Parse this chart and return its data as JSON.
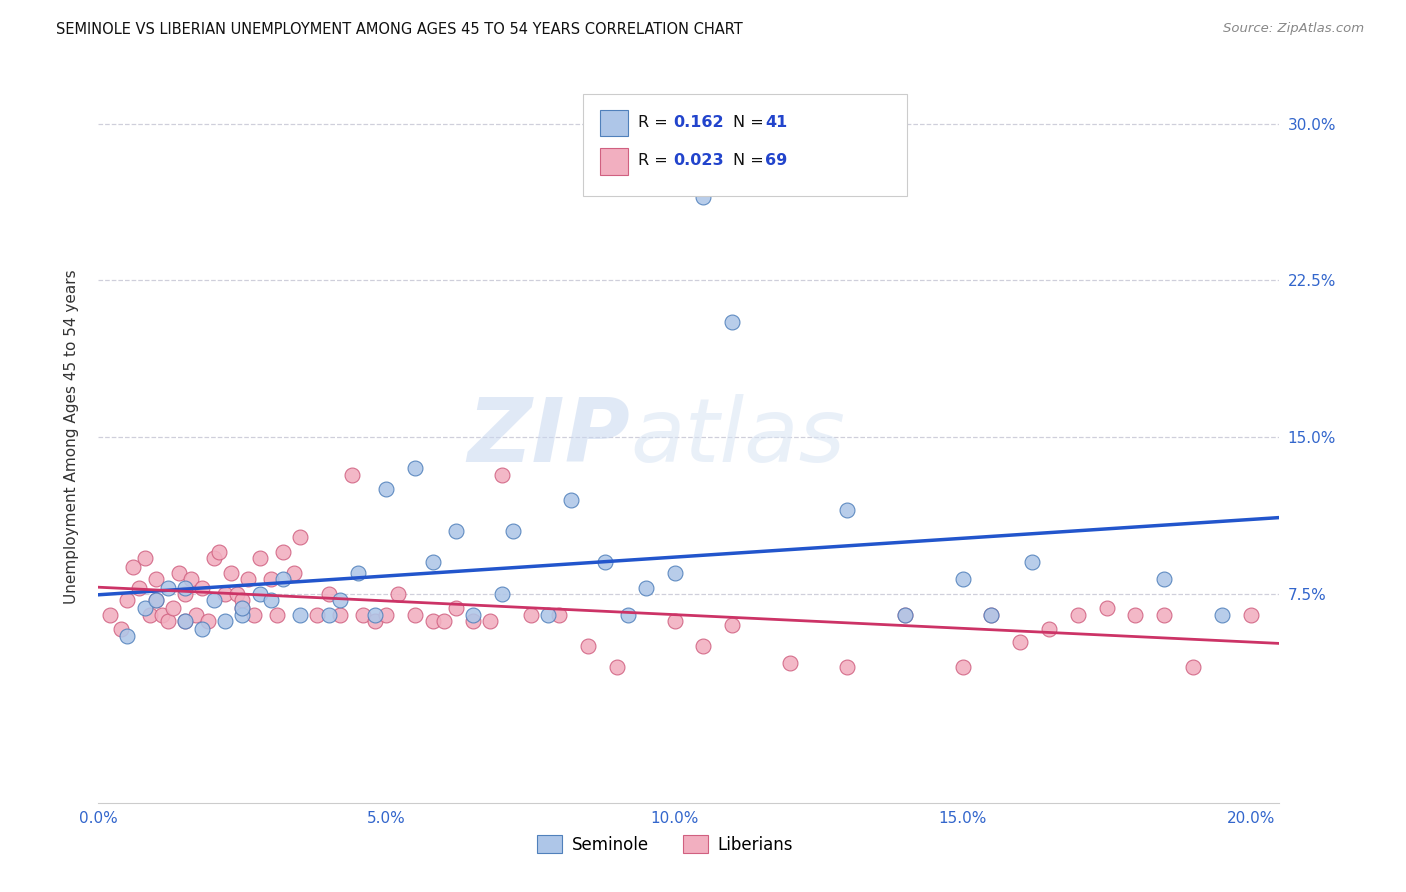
{
  "title": "SEMINOLE VS LIBERIAN UNEMPLOYMENT AMONG AGES 45 TO 54 YEARS CORRELATION CHART",
  "source": "Source: ZipAtlas.com",
  "ylabel": "Unemployment Among Ages 45 to 54 years",
  "xlim": [
    0.0,
    0.205
  ],
  "ylim": [
    -0.025,
    0.325
  ],
  "xticks": [
    0.0,
    0.05,
    0.1,
    0.15,
    0.2
  ],
  "yticks": [
    0.075,
    0.15,
    0.225,
    0.3
  ],
  "xtick_labels": [
    "0.0%",
    "5.0%",
    "10.0%",
    "15.0%",
    "20.0%"
  ],
  "ytick_labels": [
    "7.5%",
    "15.0%",
    "22.5%",
    "30.0%"
  ],
  "seminole_fill": "#aec6e8",
  "seminole_edge": "#5080bb",
  "liberian_fill": "#f2afc0",
  "liberian_edge": "#d06080",
  "trend_blue": "#2255cc",
  "trend_pink": "#cc3366",
  "watermark_zip": "ZIP",
  "watermark_atlas": "atlas",
  "r_seminole": "0.162",
  "n_seminole": "41",
  "r_liberian": "0.023",
  "n_liberian": "69",
  "seminole_x": [
    0.005,
    0.008,
    0.01,
    0.012,
    0.015,
    0.015,
    0.018,
    0.02,
    0.022,
    0.025,
    0.025,
    0.028,
    0.03,
    0.032,
    0.035,
    0.04,
    0.042,
    0.045,
    0.048,
    0.05,
    0.055,
    0.058,
    0.062,
    0.065,
    0.07,
    0.072,
    0.078,
    0.082,
    0.088,
    0.092,
    0.095,
    0.1,
    0.105,
    0.11,
    0.13,
    0.14,
    0.15,
    0.155,
    0.162,
    0.185,
    0.195
  ],
  "seminole_y": [
    0.055,
    0.068,
    0.072,
    0.078,
    0.062,
    0.078,
    0.058,
    0.072,
    0.062,
    0.065,
    0.068,
    0.075,
    0.072,
    0.082,
    0.065,
    0.065,
    0.072,
    0.085,
    0.065,
    0.125,
    0.135,
    0.09,
    0.105,
    0.065,
    0.075,
    0.105,
    0.065,
    0.12,
    0.09,
    0.065,
    0.078,
    0.085,
    0.265,
    0.205,
    0.115,
    0.065,
    0.082,
    0.065,
    0.09,
    0.082,
    0.065
  ],
  "liberian_x": [
    0.002,
    0.004,
    0.005,
    0.006,
    0.007,
    0.008,
    0.009,
    0.01,
    0.01,
    0.011,
    0.012,
    0.013,
    0.014,
    0.015,
    0.015,
    0.016,
    0.017,
    0.018,
    0.019,
    0.02,
    0.021,
    0.022,
    0.023,
    0.024,
    0.025,
    0.025,
    0.026,
    0.027,
    0.028,
    0.03,
    0.031,
    0.032,
    0.034,
    0.035,
    0.038,
    0.04,
    0.042,
    0.044,
    0.046,
    0.048,
    0.05,
    0.052,
    0.055,
    0.058,
    0.06,
    0.062,
    0.065,
    0.068,
    0.07,
    0.075,
    0.08,
    0.085,
    0.09,
    0.1,
    0.105,
    0.11,
    0.12,
    0.13,
    0.14,
    0.15,
    0.155,
    0.16,
    0.165,
    0.17,
    0.175,
    0.18,
    0.185,
    0.19,
    0.2
  ],
  "liberian_y": [
    0.065,
    0.058,
    0.072,
    0.088,
    0.078,
    0.092,
    0.065,
    0.072,
    0.082,
    0.065,
    0.062,
    0.068,
    0.085,
    0.075,
    0.062,
    0.082,
    0.065,
    0.078,
    0.062,
    0.092,
    0.095,
    0.075,
    0.085,
    0.075,
    0.068,
    0.072,
    0.082,
    0.065,
    0.092,
    0.082,
    0.065,
    0.095,
    0.085,
    0.102,
    0.065,
    0.075,
    0.065,
    0.132,
    0.065,
    0.062,
    0.065,
    0.075,
    0.065,
    0.062,
    0.062,
    0.068,
    0.062,
    0.062,
    0.132,
    0.065,
    0.065,
    0.05,
    0.04,
    0.062,
    0.05,
    0.06,
    0.042,
    0.04,
    0.065,
    0.04,
    0.065,
    0.052,
    0.058,
    0.065,
    0.068,
    0.065,
    0.065,
    0.04,
    0.065
  ]
}
